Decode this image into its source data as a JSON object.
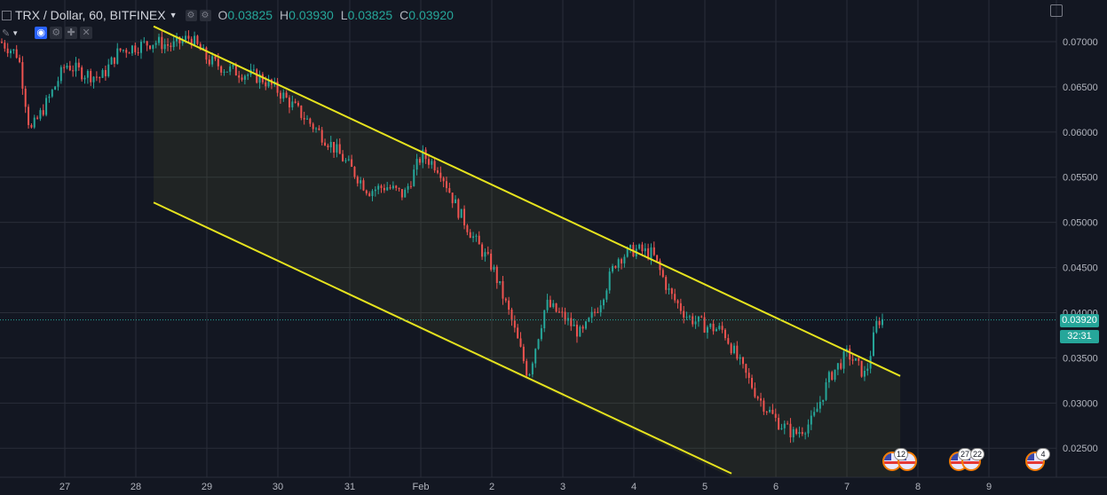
{
  "header": {
    "symbol": "TRX / Dollar, 60, BITFINEX",
    "open_label": "O",
    "open_value": "0.03825",
    "high_label": "H",
    "high_value": "0.03930",
    "low_label": "L",
    "low_value": "0.03825",
    "close_label": "C",
    "close_value": "0.03920"
  },
  "price_scale": {
    "ticks": [
      "0.07000",
      "0.06500",
      "0.06000",
      "0.05500",
      "0.05000",
      "0.04500",
      "0.04000",
      "0.03500",
      "0.03000",
      "0.02500"
    ],
    "last_price": "0.03920",
    "countdown": "32:31"
  },
  "time_axis": {
    "labels": [
      "27",
      "28",
      "29",
      "30",
      "31",
      "Feb",
      "2",
      "3",
      "4",
      "5",
      "6",
      "7",
      "8",
      "9"
    ]
  },
  "events": {
    "badges": [
      "12",
      "27",
      "22",
      "4"
    ]
  },
  "colors": {
    "bg": "#131722",
    "grid": "#2a2e39",
    "up": "#26a69a",
    "down": "#ef5350",
    "channel": "#e6e31e"
  },
  "chart_data": {
    "type": "candlestick",
    "title": "TRX / Dollar, 60, BITFINEX",
    "x_labels": [
      "27",
      "28",
      "29",
      "30",
      "31",
      "Feb",
      "2",
      "3",
      "4",
      "5",
      "6",
      "7",
      "8",
      "9"
    ],
    "ylim": [
      0.0235,
      0.0725
    ],
    "grid": true,
    "close_path": [
      [
        "26 00:00",
        0.0705
      ],
      [
        "26 08:00",
        0.0685
      ],
      [
        "26 12:00",
        0.06
      ],
      [
        "26 18:00",
        0.0635
      ],
      [
        "27 00:00",
        0.0675
      ],
      [
        "27 06:00",
        0.0665
      ],
      [
        "27 12:00",
        0.066
      ],
      [
        "27 18:00",
        0.069
      ],
      [
        "28 00:00",
        0.0695
      ],
      [
        "28 06:00",
        0.07
      ],
      [
        "28 12:00",
        0.0695
      ],
      [
        "28 18:00",
        0.0705
      ],
      [
        "29 00:00",
        0.068
      ],
      [
        "29 06:00",
        0.067
      ],
      [
        "29 12:00",
        0.0665
      ],
      [
        "29 18:00",
        0.066
      ],
      [
        "30 00:00",
        0.0645
      ],
      [
        "30 06:00",
        0.0625
      ],
      [
        "30 12:00",
        0.0605
      ],
      [
        "30 18:00",
        0.0585
      ],
      [
        "31 00:00",
        0.056
      ],
      [
        "31 06:00",
        0.0535
      ],
      [
        "31 12:00",
        0.054
      ],
      [
        "31 18:00",
        0.053
      ],
      [
        "Feb 1 00:00",
        0.0575
      ],
      [
        "Feb 1 06:00",
        0.056
      ],
      [
        "Feb 1 12:00",
        0.0515
      ],
      [
        "Feb 1 18:00",
        0.048
      ],
      [
        "Feb 2 00:00",
        0.045
      ],
      [
        "Feb 2 06:00",
        0.0395
      ],
      [
        "Feb 2 12:00",
        0.033
      ],
      [
        "Feb 2 18:00",
        0.041
      ],
      [
        "Feb 3 00:00",
        0.0395
      ],
      [
        "Feb 3 06:00",
        0.0375
      ],
      [
        "Feb 3 12:00",
        0.041
      ],
      [
        "Feb 3 18:00",
        0.046
      ],
      [
        "Feb 4 00:00",
        0.047
      ],
      [
        "Feb 4 06:00",
        0.0465
      ],
      [
        "Feb 4 12:00",
        0.042
      ],
      [
        "Feb 4 18:00",
        0.0395
      ],
      [
        "Feb 5 00:00",
        0.0385
      ],
      [
        "Feb 5 06:00",
        0.038
      ],
      [
        "Feb 5 12:00",
        0.034
      ],
      [
        "Feb 5 18:00",
        0.0305
      ],
      [
        "Feb 6 00:00",
        0.028
      ],
      [
        "Feb 6 06:00",
        0.0265
      ],
      [
        "Feb 6 12:00",
        0.028
      ],
      [
        "Feb 6 18:00",
        0.033
      ],
      [
        "Feb 7 00:00",
        0.0355
      ],
      [
        "Feb 7 06:00",
        0.033
      ],
      [
        "Feb 7 10:00",
        0.0392
      ]
    ],
    "channel": {
      "upper": [
        [
          "28 06:00",
          0.0717
        ],
        [
          "Feb 7 18:00",
          0.033
        ]
      ],
      "lower": [
        [
          "28 06:00",
          0.0522
        ],
        [
          "Feb 5 09:00",
          0.0222
        ]
      ]
    }
  }
}
